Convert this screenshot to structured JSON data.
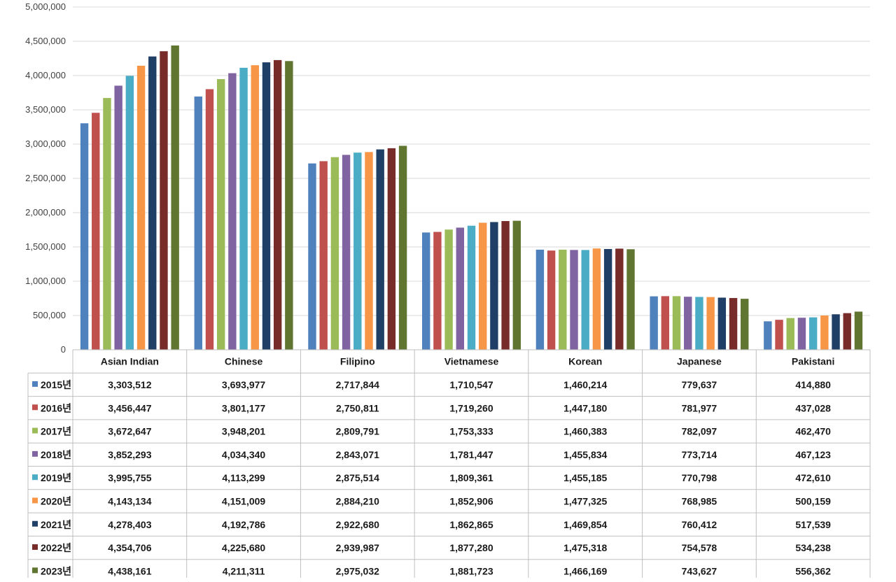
{
  "chart_data": {
    "type": "bar",
    "categories": [
      "Asian Indian",
      "Chinese",
      "Filipino",
      "Vietnamese",
      "Korean",
      "Japanese",
      "Pakistani"
    ],
    "ylim": [
      0,
      5000000
    ],
    "yticks": [
      "0",
      "500,000",
      "1,000,000",
      "1,500,000",
      "2,000,000",
      "2,500,000",
      "3,000,000",
      "3,500,000",
      "4,000,000",
      "4,500,000",
      "5,000,000"
    ],
    "yticks_values": [
      0,
      500000,
      1000000,
      1500000,
      2000000,
      2500000,
      3000000,
      3500000,
      4000000,
      4500000,
      5000000
    ],
    "grid": true,
    "legend": "data-table",
    "series": [
      {
        "name": "2015년",
        "color": "#4f81bd",
        "values": [
          3303512,
          3693977,
          2717844,
          1710547,
          1460214,
          779637,
          414880
        ],
        "labels": [
          "3,303,512",
          "3,693,977",
          "2,717,844",
          "1,710,547",
          "1,460,214",
          "779,637",
          "414,880"
        ]
      },
      {
        "name": "2016년",
        "color": "#c0504d",
        "values": [
          3456447,
          3801177,
          2750811,
          1719260,
          1447180,
          781977,
          437028
        ],
        "labels": [
          "3,456,447",
          "3,801,177",
          "2,750,811",
          "1,719,260",
          "1,447,180",
          "781,977",
          "437,028"
        ]
      },
      {
        "name": "2017년",
        "color": "#9bbb59",
        "values": [
          3672647,
          3948201,
          2809791,
          1753333,
          1460383,
          782097,
          462470
        ],
        "labels": [
          "3,672,647",
          "3,948,201",
          "2,809,791",
          "1,753,333",
          "1,460,383",
          "782,097",
          "462,470"
        ]
      },
      {
        "name": "2018년",
        "color": "#8064a2",
        "values": [
          3852293,
          4034340,
          2843071,
          1781447,
          1455834,
          773714,
          467123
        ],
        "labels": [
          "3,852,293",
          "4,034,340",
          "2,843,071",
          "1,781,447",
          "1,455,834",
          "773,714",
          "467,123"
        ]
      },
      {
        "name": "2019년",
        "color": "#4bacc6",
        "values": [
          3995755,
          4113299,
          2875514,
          1809361,
          1455185,
          770798,
          472610
        ],
        "labels": [
          "3,995,755",
          "4,113,299",
          "2,875,514",
          "1,809,361",
          "1,455,185",
          "770,798",
          "472,610"
        ]
      },
      {
        "name": "2020년",
        "color": "#f79646",
        "values": [
          4143134,
          4151009,
          2884210,
          1852906,
          1477325,
          768985,
          500159
        ],
        "labels": [
          "4,143,134",
          "4,151,009",
          "2,884,210",
          "1,852,906",
          "1,477,325",
          "768,985",
          "500,159"
        ]
      },
      {
        "name": "2021년",
        "color": "#1f3f66",
        "values": [
          4278403,
          4192786,
          2922680,
          1862865,
          1469854,
          760412,
          517539
        ],
        "labels": [
          "4,278,403",
          "4,192,786",
          "2,922,680",
          "1,862,865",
          "1,469,854",
          "760,412",
          "517,539"
        ]
      },
      {
        "name": "2022년",
        "color": "#772c2a",
        "values": [
          4354706,
          4225680,
          2939987,
          1877280,
          1475318,
          754578,
          534238
        ],
        "labels": [
          "4,354,706",
          "4,225,680",
          "2,939,987",
          "1,877,280",
          "1,475,318",
          "754,578",
          "534,238"
        ]
      },
      {
        "name": "2023년",
        "color": "#5f7530",
        "values": [
          4438161,
          4211311,
          2975032,
          1881723,
          1466169,
          743627,
          556362
        ],
        "labels": [
          "4,438,161",
          "4,211,311",
          "2,975,032",
          "1,881,723",
          "1,466,169",
          "743,627",
          "556,362"
        ]
      }
    ]
  }
}
